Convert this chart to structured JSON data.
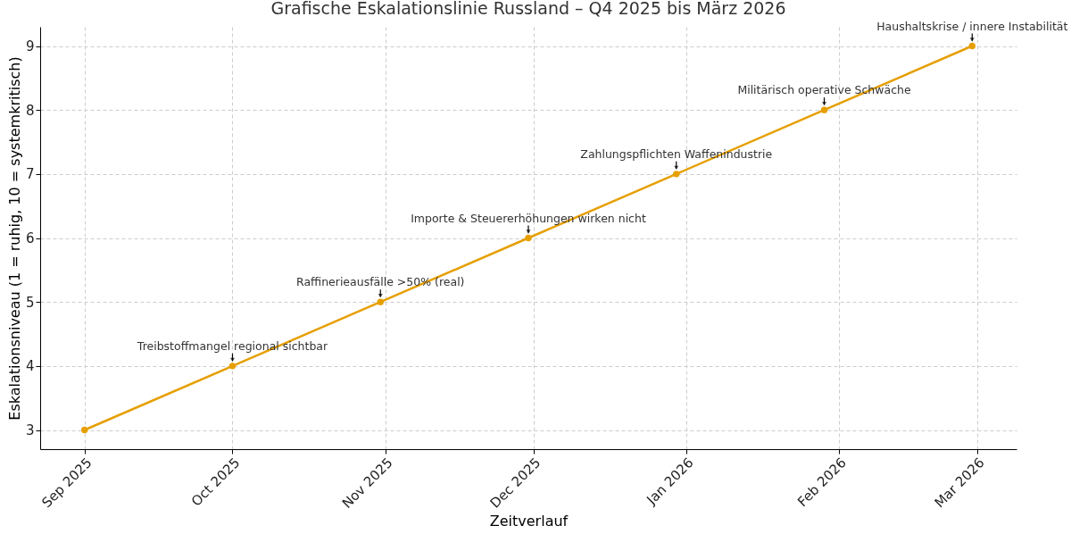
{
  "chart_data": {
    "type": "line",
    "title": "Grafische Eskalationslinie Russland – Q4 2025 bis März 2026",
    "xlabel": "Zeitverlauf",
    "ylabel": "Eskalationsniveau (1 = ruhig, 10 = systemkritisch)",
    "x": [
      "2025-09-01",
      "2025-10-01",
      "2025-10-31",
      "2025-11-30",
      "2025-12-30",
      "2026-01-29",
      "2026-02-28"
    ],
    "series": [
      {
        "color": "#e69f00",
        "values": [
          3,
          4,
          5,
          6,
          7,
          8,
          9
        ]
      }
    ],
    "xlim": [
      "2025-08-23",
      "2026-03-09"
    ],
    "xticks": [
      {
        "value": "2025-09-01",
        "label": "Sep 2025"
      },
      {
        "value": "2025-10-01",
        "label": "Oct 2025"
      },
      {
        "value": "2025-11-01",
        "label": "Nov 2025"
      },
      {
        "value": "2025-12-01",
        "label": "Dec 2025"
      },
      {
        "value": "2026-01-01",
        "label": "Jan 2026"
      },
      {
        "value": "2026-02-01",
        "label": "Feb 2026"
      },
      {
        "value": "2026-03-01",
        "label": "Mar 2026"
      }
    ],
    "ylim": [
      2.7,
      9.3
    ],
    "yticks": [
      3,
      4,
      5,
      6,
      7,
      8,
      9
    ],
    "grid": true,
    "marker": "circle",
    "line_style": "solid",
    "annotations": [
      {
        "text": "Treibstoffmangel regional sichtbar",
        "x": "2025-10-01",
        "y": 4
      },
      {
        "text": "Raffinerieausfälle >50% (real)",
        "x": "2025-10-31",
        "y": 5
      },
      {
        "text": "Importe & Steuererhöhungen wirken nicht",
        "x": "2025-11-30",
        "y": 6
      },
      {
        "text": "Zahlungspflichten Waffenindustrie",
        "x": "2025-12-30",
        "y": 7
      },
      {
        "text": "Militärisch operative Schwäche",
        "x": "2026-01-29",
        "y": 8
      },
      {
        "text": "Haushaltskrise / innere Instabilität",
        "x": "2026-02-28",
        "y": 9
      }
    ]
  }
}
